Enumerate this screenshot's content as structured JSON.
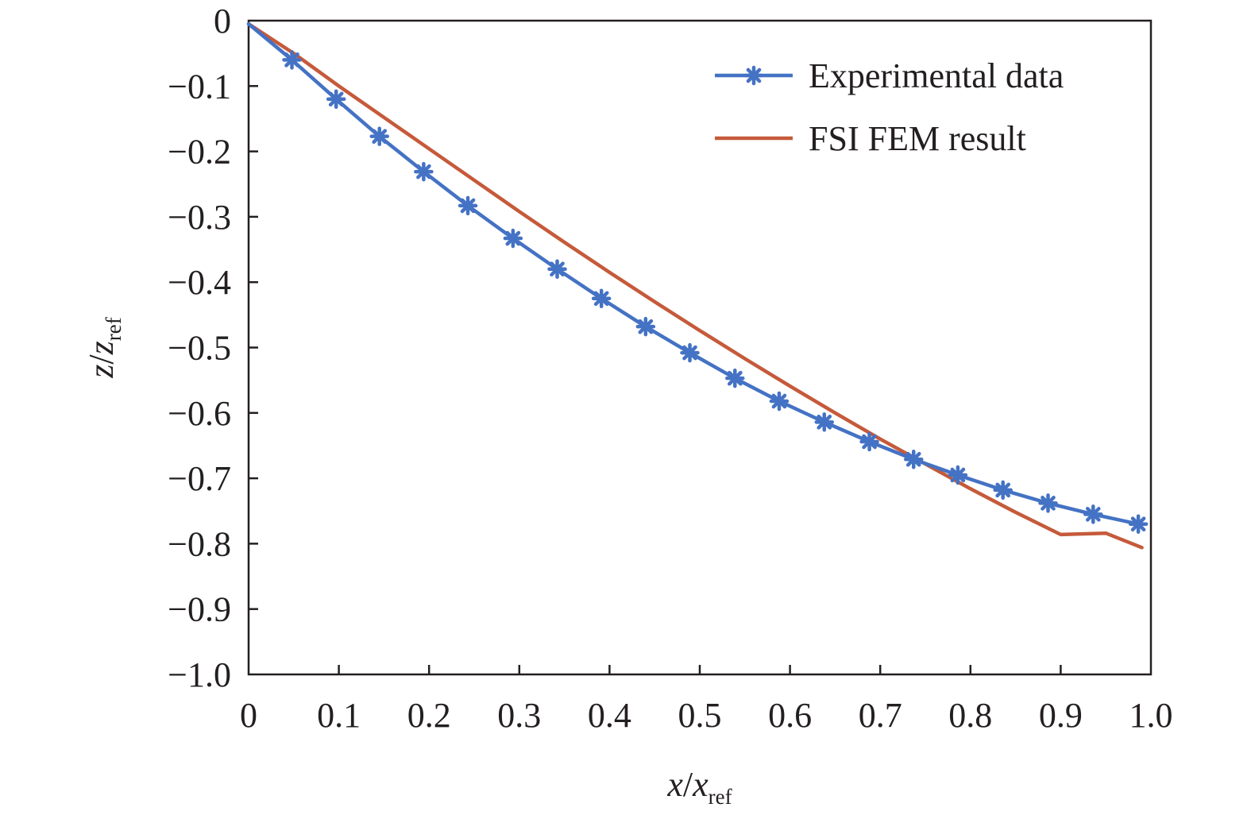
{
  "chart_data": {
    "type": "line",
    "xlabel": {
      "var": "x",
      "sub": "ref"
    },
    "ylabel": {
      "var": "z",
      "sub": "ref"
    },
    "xlim": [
      0,
      1.0
    ],
    "ylim": [
      -1.0,
      0
    ],
    "x_ticks": [
      "0",
      "0.1",
      "0.2",
      "0.3",
      "0.4",
      "0.5",
      "0.6",
      "0.7",
      "0.8",
      "0.9",
      "1.0"
    ],
    "y_ticks": [
      "0",
      "−0.1",
      "−0.2",
      "−0.3",
      "−0.4",
      "−0.5",
      "−0.6",
      "−0.7",
      "−0.8",
      "−0.9",
      "−1.0"
    ],
    "grid": false,
    "legend_position": "top-right",
    "series": [
      {
        "name": "Experimental data",
        "color": "#4472c4",
        "marker": "asterisk",
        "x": [
          0,
          0.048,
          0.097,
          0.145,
          0.194,
          0.243,
          0.293,
          0.342,
          0.391,
          0.44,
          0.489,
          0.539,
          0.588,
          0.638,
          0.688,
          0.737,
          0.786,
          0.836,
          0.886,
          0.936,
          0.986
        ],
        "y": [
          -0.005,
          -0.06,
          -0.12,
          -0.177,
          -0.231,
          -0.283,
          -0.333,
          -0.38,
          -0.425,
          -0.468,
          -0.508,
          -0.547,
          -0.582,
          -0.614,
          -0.644,
          -0.671,
          -0.695,
          -0.718,
          -0.738,
          -0.755,
          -0.77
        ]
      },
      {
        "name": "FSI FEM result",
        "color": "#c55a3a",
        "marker": "none",
        "x": [
          0,
          0.05,
          0.1,
          0.15,
          0.2,
          0.25,
          0.3,
          0.35,
          0.4,
          0.45,
          0.5,
          0.55,
          0.6,
          0.65,
          0.7,
          0.75,
          0.8,
          0.85,
          0.9,
          0.95,
          0.99
        ],
        "y": [
          -0.005,
          -0.05,
          -0.1,
          -0.148,
          -0.196,
          -0.244,
          -0.292,
          -0.339,
          -0.385,
          -0.43,
          -0.474,
          -0.517,
          -0.559,
          -0.6,
          -0.64,
          -0.678,
          -0.716,
          -0.752,
          -0.786,
          -0.784,
          -0.806
        ]
      }
    ]
  }
}
